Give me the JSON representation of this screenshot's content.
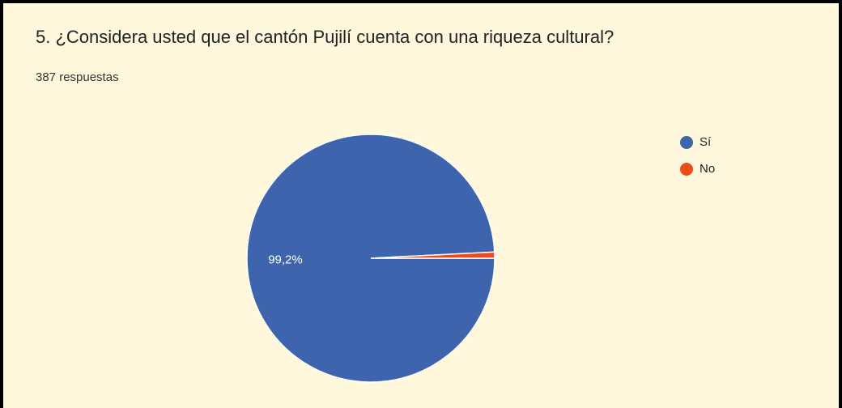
{
  "chart_data": {
    "type": "pie",
    "title": "5. ¿Considera usted que el cantón Pujilí cuenta con una riqueza cultural?",
    "subtitle": "387 respuestas",
    "categories": [
      "Sí",
      "No"
    ],
    "values": [
      99.2,
      0.8
    ],
    "value_labels": [
      "99,2%",
      null
    ],
    "colors": [
      "#3d64ad",
      "#ee4b1c"
    ],
    "legend": "right"
  }
}
